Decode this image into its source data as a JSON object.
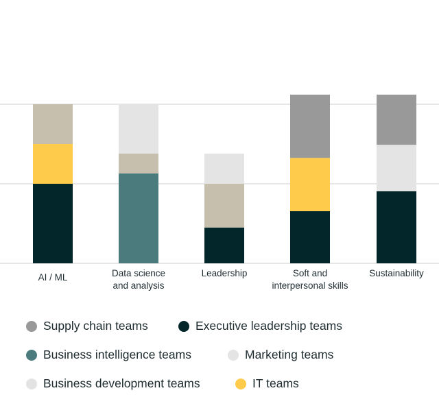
{
  "chart_data": {
    "type": "bar",
    "stacked": true,
    "title": "",
    "xlabel": "",
    "ylabel": "",
    "ylim": [
      0,
      40
    ],
    "grid": true,
    "gridlines": [
      0,
      20,
      40
    ],
    "legend_position": "bottom",
    "categories": [
      "AI / ML",
      "Data science and analysis",
      "Leadership",
      "Soft and interpersonal skills",
      "Sustainability"
    ],
    "category_lines": [
      [
        "AI / ML"
      ],
      [
        "Data science",
        "and analysis"
      ],
      [
        "Leadership"
      ],
      [
        "Soft and",
        "interpersonal skills"
      ],
      [
        "Sustainability"
      ]
    ],
    "series": [
      {
        "name": "Executive leadership teams",
        "color": "#022629",
        "legend_color": "#022629",
        "values": [
          20,
          0,
          9,
          13.1,
          18.1
        ]
      },
      {
        "name": "Business intelligence teams",
        "color": "#4c7b7e",
        "legend_color": "#4c7b7e",
        "values": [
          0,
          22.6,
          0,
          0,
          0
        ]
      },
      {
        "name": "IT teams",
        "color": "#fecc4a",
        "legend_color": "#fecc4a",
        "values": [
          10,
          0,
          0,
          13.4,
          0
        ]
      },
      {
        "name": "Business development teams",
        "color": "#c6bfae",
        "legend_color": "#e3e3e3",
        "values": [
          10,
          5,
          11,
          0,
          0
        ]
      },
      {
        "name": "Marketing teams",
        "color": "#e4e4e4",
        "legend_color": "#e4e4e4",
        "values": [
          0,
          12.4,
          7.6,
          0,
          11.7
        ]
      },
      {
        "name": "Supply chain teams",
        "color": "#999999",
        "legend_color": "#999999",
        "values": [
          0,
          0,
          0,
          15.9,
          12.6
        ]
      }
    ],
    "legend_order": [
      "Supply chain teams",
      "Executive leadership teams",
      "Business intelligence teams",
      "Marketing teams",
      "Business development teams",
      "IT teams"
    ]
  }
}
